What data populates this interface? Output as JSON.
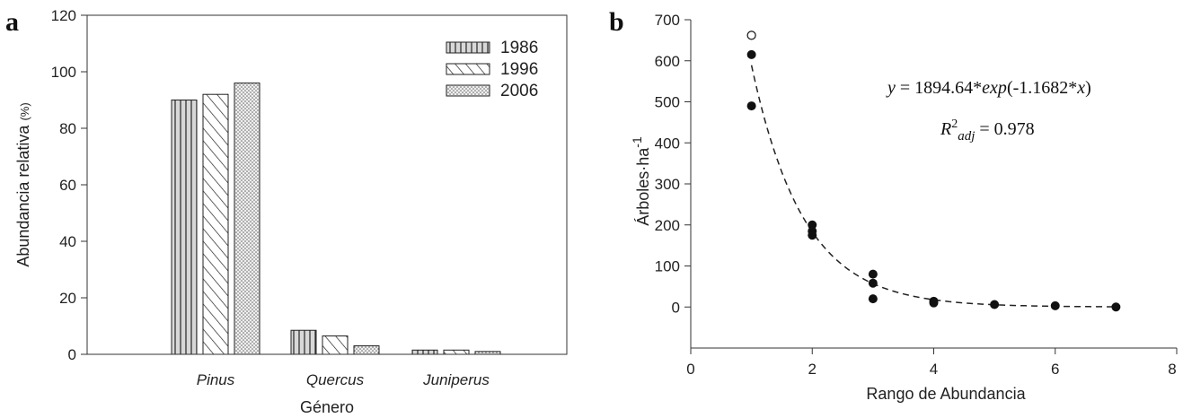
{
  "chart_data": [
    {
      "panel": "a",
      "type": "bar",
      "xlabel": "Género",
      "ylabel": "Abundancia relativa",
      "ylabel_unit": "(%)",
      "categories": [
        "Pinus",
        "Quercus",
        "Juniperus"
      ],
      "series": [
        {
          "name": "1986",
          "values": [
            90,
            8.5,
            1.5
          ],
          "pattern": "vertical-lines"
        },
        {
          "name": "1996",
          "values": [
            92,
            6.5,
            1.5
          ],
          "pattern": "diagonal-lines"
        },
        {
          "name": "2006",
          "values": [
            96,
            3,
            1
          ],
          "pattern": "dots"
        }
      ],
      "ylim": [
        0,
        120
      ],
      "yticks": [
        0,
        20,
        40,
        60,
        80,
        100,
        120
      ],
      "legend": "top-right",
      "grid": false
    },
    {
      "panel": "b",
      "type": "scatter",
      "xlabel": "Rango de Abundancia",
      "ylabel": "Árboles·ha",
      "ylabel_sup": "-1",
      "xlim": [
        0,
        8
      ],
      "ylim": [
        -100,
        700
      ],
      "xticks": [
        0,
        2,
        4,
        6,
        8
      ],
      "yticks": [
        0,
        100,
        200,
        300,
        400,
        500,
        600,
        700
      ],
      "points_filled": [
        [
          1,
          615
        ],
        [
          1,
          490
        ],
        [
          2,
          200
        ],
        [
          2,
          185
        ],
        [
          2,
          175
        ],
        [
          3,
          80
        ],
        [
          3,
          58
        ],
        [
          3,
          20
        ],
        [
          4,
          14
        ],
        [
          4,
          10
        ],
        [
          5,
          6
        ],
        [
          6,
          3
        ],
        [
          7,
          0
        ]
      ],
      "points_open": [
        [
          1,
          662
        ]
      ],
      "fit": {
        "a": 1894.64,
        "b": -1.1682,
        "x_range": [
          1,
          7
        ],
        "style": "dashed"
      },
      "equation": {
        "lhs": "y",
        "eq": " = 1894.64*",
        "fn": "exp",
        "arg": "(-1.1682*",
        "x": "x",
        "close": ")"
      },
      "r2": {
        "R": "R",
        "sup": "2",
        "sub": "adj",
        "value": " = 0.978"
      },
      "grid": false
    }
  ]
}
